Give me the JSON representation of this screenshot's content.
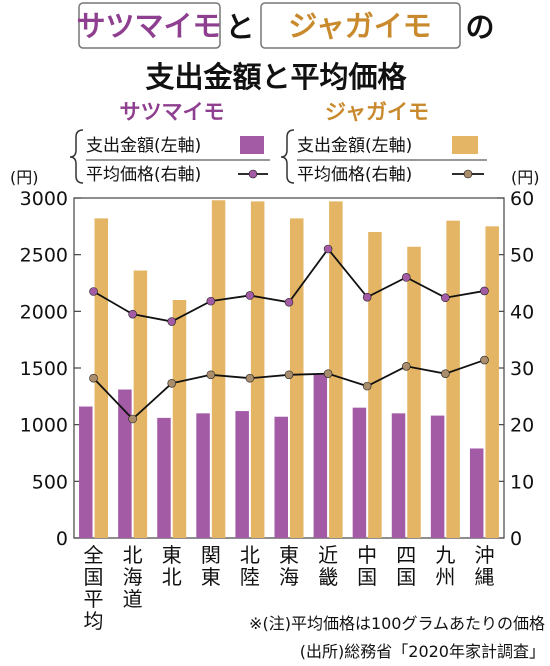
{
  "title": {
    "prefix": "サツマイモ",
    "middle": "と",
    "suffix": "ジャガイモ",
    "tail": "の",
    "line2": "支出金額と平均価格"
  },
  "legend": {
    "sweet_potato": "サツマイモ",
    "potato": "ジャガイモ",
    "spend_label": "支出金額(左軸)",
    "price_label": "平均価格(右軸)"
  },
  "axis": {
    "left_unit": "(円)",
    "right_unit": "(円)"
  },
  "notes": {
    "note1": "※(注)平均価格は100グラムあたりの価格",
    "note2": "(出所)総務省「2020年家計調査」"
  },
  "colors": {
    "sweet_potato": "#a45ba6",
    "potato": "#e3b565",
    "line": "#111111",
    "sweet_marker": "#a45ba6",
    "potato_marker": "#a98d6c"
  },
  "chart_data": {
    "type": "bar",
    "categories": [
      "全国平均",
      "北海道",
      "東北",
      "関東",
      "北陸",
      "東海",
      "近畿",
      "中国",
      "四国",
      "九州",
      "沖縄"
    ],
    "left_axis": {
      "label": "(円)",
      "ylim": [
        0,
        3000
      ],
      "ticks": [
        0,
        500,
        1000,
        1500,
        2000,
        2500,
        3000
      ]
    },
    "right_axis": {
      "label": "(円)",
      "ylim": [
        0,
        60
      ],
      "ticks": [
        0,
        10,
        20,
        30,
        40,
        50,
        60
      ]
    },
    "series": [
      {
        "name": "サツマイモ 支出金額(左軸)",
        "type": "bar",
        "axis": "left",
        "values": [
          1160,
          1310,
          1060,
          1100,
          1120,
          1070,
          1440,
          1150,
          1100,
          1080,
          790
        ]
      },
      {
        "name": "ジャガイモ 支出金額(左軸)",
        "type": "bar",
        "axis": "left",
        "values": [
          2820,
          2360,
          2100,
          2980,
          2970,
          2820,
          2970,
          2700,
          2570,
          2800,
          2750
        ]
      },
      {
        "name": "サツマイモ 平均価格(右軸)",
        "type": "line",
        "axis": "right",
        "values": [
          43.5,
          39.5,
          38.2,
          41.8,
          42.8,
          41.6,
          51.0,
          42.5,
          46.0,
          42.4,
          43.6
        ]
      },
      {
        "name": "ジャガイモ 平均価格(右軸)",
        "type": "line",
        "axis": "right",
        "values": [
          28.2,
          21.0,
          27.3,
          28.8,
          28.2,
          28.8,
          29.0,
          26.8,
          30.3,
          29.0,
          31.4
        ]
      }
    ],
    "grid": false
  }
}
